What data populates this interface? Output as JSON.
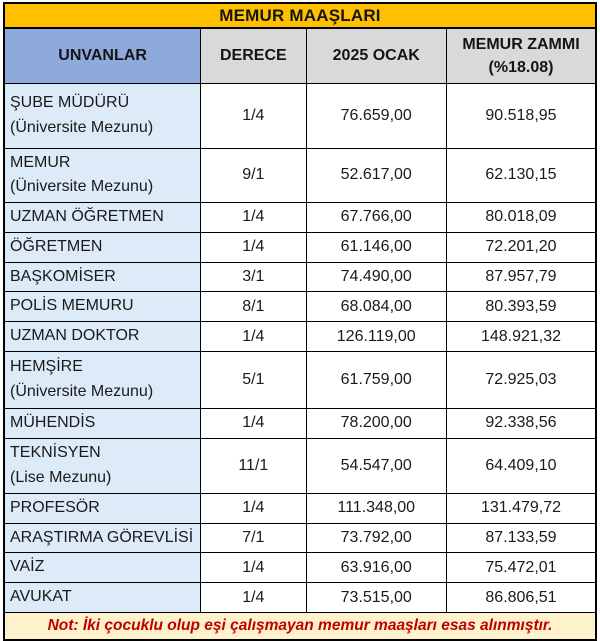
{
  "title": "MEMUR MAAŞLARI",
  "header": {
    "col_unvanlar": "UNVANLAR",
    "col_derece": "DERECE",
    "col_ocak": "2025 OCAK",
    "col_zam_line1": "MEMUR ZAMMI",
    "col_zam_line2": "(%18.08)"
  },
  "note": "Not: İki çocuklu olup eşi çalışmayan memur maaşları esas alınmıştır.",
  "colors": {
    "title_bg": "#FFC000",
    "unvan_header_bg": "#8EA9DB",
    "header_bg": "#D9D9D9",
    "row_label_bg": "#DDEAF7",
    "note_bg": "#FDF2CC",
    "note_text": "#C00000",
    "border": "#000000"
  },
  "chart_data": {
    "type": "table",
    "title": "MEMUR MAAŞLARI",
    "columns": [
      "UNVANLAR",
      "DERECE",
      "2025 OCAK",
      "MEMUR ZAMMI (%18.08)"
    ],
    "zam_orani_yuzde": 18.08,
    "rows": [
      {
        "unvan": "ŞUBE MÜDÜRÜ",
        "detay": "(Üniversite Mezunu)",
        "derece": "1/4",
        "ocak_2025": "76.659,00",
        "zamli_maas": "90.518,95"
      },
      {
        "unvan": "MEMUR",
        "detay": "(Üniversite Mezunu)",
        "derece": "9/1",
        "ocak_2025": "52.617,00",
        "zamli_maas": "62.130,15"
      },
      {
        "unvan": "UZMAN ÖĞRETMEN",
        "detay": "",
        "derece": "1/4",
        "ocak_2025": "67.766,00",
        "zamli_maas": "80.018,09"
      },
      {
        "unvan": "ÖĞRETMEN",
        "detay": "",
        "derece": "1/4",
        "ocak_2025": "61.146,00",
        "zamli_maas": "72.201,20"
      },
      {
        "unvan": "BAŞKOMİSER",
        "detay": "",
        "derece": "3/1",
        "ocak_2025": "74.490,00",
        "zamli_maas": "87.957,79"
      },
      {
        "unvan": "POLİS MEMURU",
        "detay": "",
        "derece": "8/1",
        "ocak_2025": "68.084,00",
        "zamli_maas": "80.393,59"
      },
      {
        "unvan": "UZMAN DOKTOR",
        "detay": "",
        "derece": "1/4",
        "ocak_2025": "126.119,00",
        "zamli_maas": "148.921,32"
      },
      {
        "unvan": "HEMŞİRE",
        "detay": "(Üniversite Mezunu)",
        "derece": "5/1",
        "ocak_2025": "61.759,00",
        "zamli_maas": "72.925,03"
      },
      {
        "unvan": "MÜHENDİS",
        "detay": "",
        "derece": "1/4",
        "ocak_2025": "78.200,00",
        "zamli_maas": "92.338,56"
      },
      {
        "unvan": "TEKNİSYEN",
        "detay": "(Lise Mezunu)",
        "derece": "11/1",
        "ocak_2025": "54.547,00",
        "zamli_maas": "64.409,10"
      },
      {
        "unvan": "PROFESÖR",
        "detay": "",
        "derece": "1/4",
        "ocak_2025": "111.348,00",
        "zamli_maas": "131.479,72"
      },
      {
        "unvan": "ARAŞTIRMA GÖREVLİSİ",
        "detay": "",
        "derece": "7/1",
        "ocak_2025": "73.792,00",
        "zamli_maas": "87.133,59"
      },
      {
        "unvan": "VAİZ",
        "detay": "",
        "derece": "1/4",
        "ocak_2025": "63.916,00",
        "zamli_maas": "75.472,01"
      },
      {
        "unvan": "AVUKAT",
        "detay": "",
        "derece": "1/4",
        "ocak_2025": "73.515,00",
        "zamli_maas": "86.806,51"
      }
    ]
  }
}
